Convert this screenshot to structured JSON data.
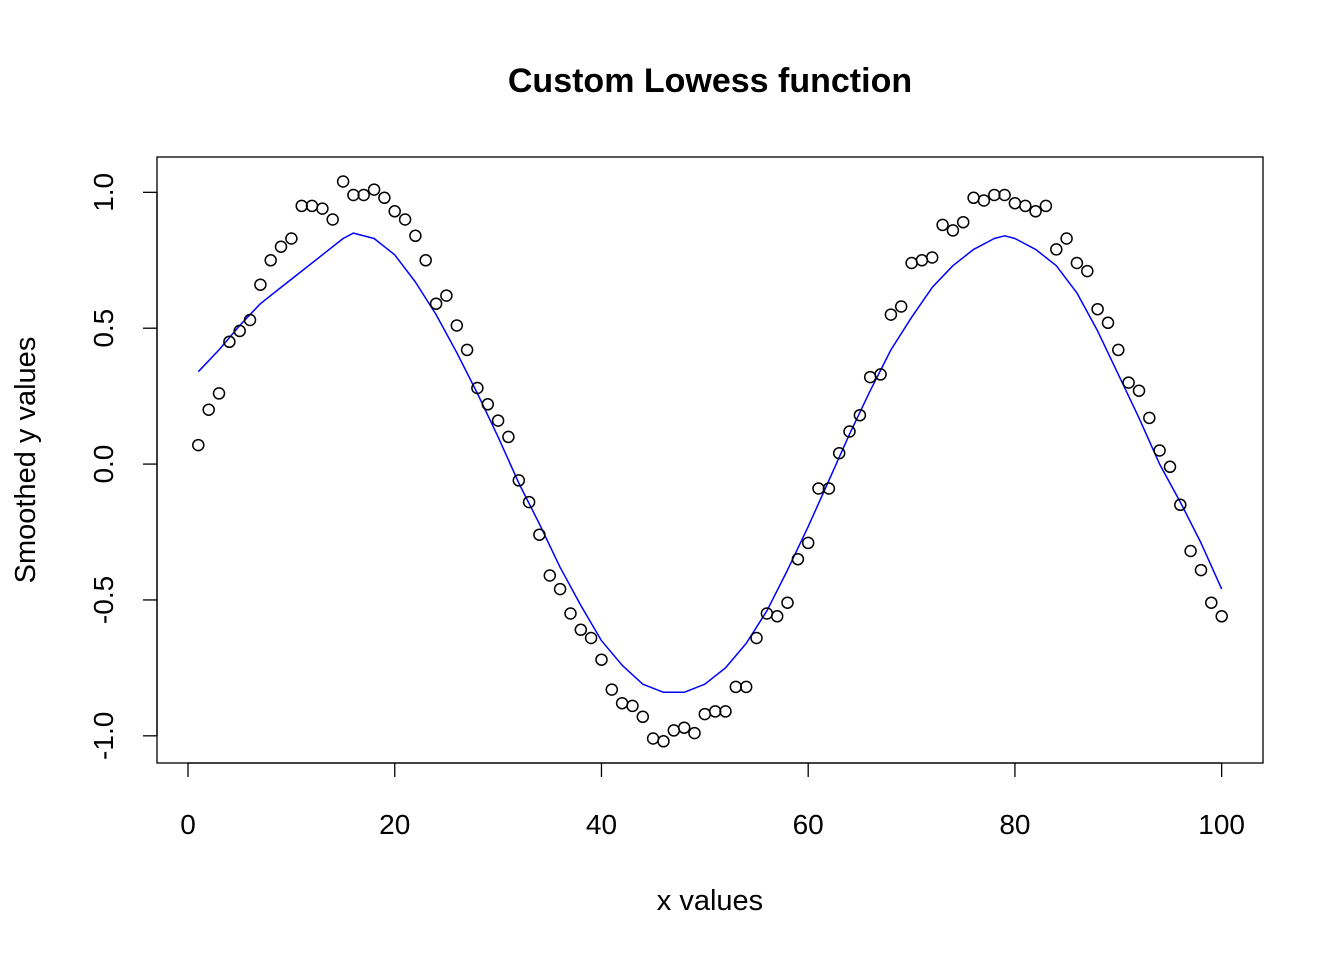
{
  "chart_data": {
    "type": "scatter",
    "title": "Custom Lowess function",
    "xlabel": "x values",
    "ylabel": "Smoothed y values",
    "xlim": [
      -3,
      104
    ],
    "ylim": [
      -1.1,
      1.13
    ],
    "x_ticks": [
      0,
      20,
      40,
      60,
      80,
      100
    ],
    "x_tick_labels": [
      "0",
      "20",
      "40",
      "60",
      "80",
      "100"
    ],
    "y_ticks": [
      -1.0,
      -0.5,
      0.0,
      0.5,
      1.0
    ],
    "y_tick_labels": [
      "-1.0",
      "-0.5",
      "0.0",
      "0.5",
      "1.0"
    ],
    "grid": false,
    "series": [
      {
        "kind": "points",
        "color": "#000000",
        "x": [
          1,
          2,
          3,
          4,
          5,
          6,
          7,
          8,
          9,
          10,
          11,
          12,
          13,
          14,
          15,
          16,
          17,
          18,
          19,
          20,
          21,
          22,
          23,
          24,
          25,
          26,
          27,
          28,
          29,
          30,
          31,
          32,
          33,
          34,
          35,
          36,
          37,
          38,
          39,
          40,
          41,
          42,
          43,
          44,
          45,
          46,
          47,
          48,
          49,
          50,
          51,
          52,
          53,
          54,
          55,
          56,
          57,
          58,
          59,
          60,
          61,
          62,
          63,
          64,
          65,
          66,
          67,
          68,
          69,
          70,
          71,
          72,
          73,
          74,
          75,
          76,
          77,
          78,
          79,
          80,
          81,
          82,
          83,
          84,
          85,
          86,
          87,
          88,
          89,
          90,
          91,
          92,
          93,
          94,
          95,
          96,
          97,
          98,
          99,
          100
        ],
        "y": [
          0.07,
          0.2,
          0.26,
          0.45,
          0.49,
          0.53,
          0.66,
          0.75,
          0.8,
          0.83,
          0.95,
          0.95,
          0.94,
          0.9,
          1.04,
          0.99,
          0.99,
          1.01,
          0.98,
          0.93,
          0.9,
          0.84,
          0.75,
          0.59,
          0.62,
          0.51,
          0.42,
          0.28,
          0.22,
          0.16,
          0.1,
          -0.06,
          -0.14,
          -0.26,
          -0.41,
          -0.46,
          -0.55,
          -0.61,
          -0.64,
          -0.72,
          -0.83,
          -0.88,
          -0.89,
          -0.93,
          -1.01,
          -1.02,
          -0.98,
          -0.97,
          -0.99,
          -0.92,
          -0.91,
          -0.91,
          -0.82,
          -0.82,
          -0.64,
          -0.55,
          -0.56,
          -0.51,
          -0.35,
          -0.29,
          -0.09,
          -0.09,
          0.04,
          0.12,
          0.18,
          0.32,
          0.33,
          0.55,
          0.58,
          0.74,
          0.75,
          0.76,
          0.88,
          0.86,
          0.89,
          0.98,
          0.97,
          0.99,
          0.99,
          0.96,
          0.95,
          0.93,
          0.95,
          0.79,
          0.83,
          0.74,
          0.71,
          0.57,
          0.52,
          0.42,
          0.3,
          0.27,
          0.17,
          0.05,
          -0.01,
          -0.15,
          -0.32,
          -0.39,
          -0.51,
          -0.56
        ]
      },
      {
        "kind": "line",
        "color": "#0000ff",
        "x": [
          1,
          3,
          5,
          7,
          9,
          11,
          13,
          15,
          16,
          18,
          20,
          22,
          24,
          26,
          28,
          30,
          32,
          34,
          36,
          38,
          40,
          42,
          44,
          46,
          48,
          50,
          52,
          54,
          56,
          58,
          60,
          62,
          64,
          66,
          68,
          70,
          72,
          74,
          76,
          78,
          79,
          80,
          82,
          84,
          86,
          88,
          90,
          92,
          94,
          96,
          98,
          100
        ],
        "y": [
          0.34,
          0.42,
          0.51,
          0.59,
          0.65,
          0.71,
          0.77,
          0.83,
          0.85,
          0.83,
          0.77,
          0.67,
          0.55,
          0.41,
          0.26,
          0.1,
          -0.07,
          -0.22,
          -0.38,
          -0.52,
          -0.65,
          -0.74,
          -0.81,
          -0.84,
          -0.84,
          -0.81,
          -0.75,
          -0.66,
          -0.54,
          -0.39,
          -0.23,
          -0.06,
          0.11,
          0.27,
          0.42,
          0.54,
          0.65,
          0.73,
          0.79,
          0.83,
          0.84,
          0.83,
          0.79,
          0.73,
          0.63,
          0.49,
          0.33,
          0.17,
          0.0,
          -0.14,
          -0.29,
          -0.46
        ]
      }
    ]
  }
}
